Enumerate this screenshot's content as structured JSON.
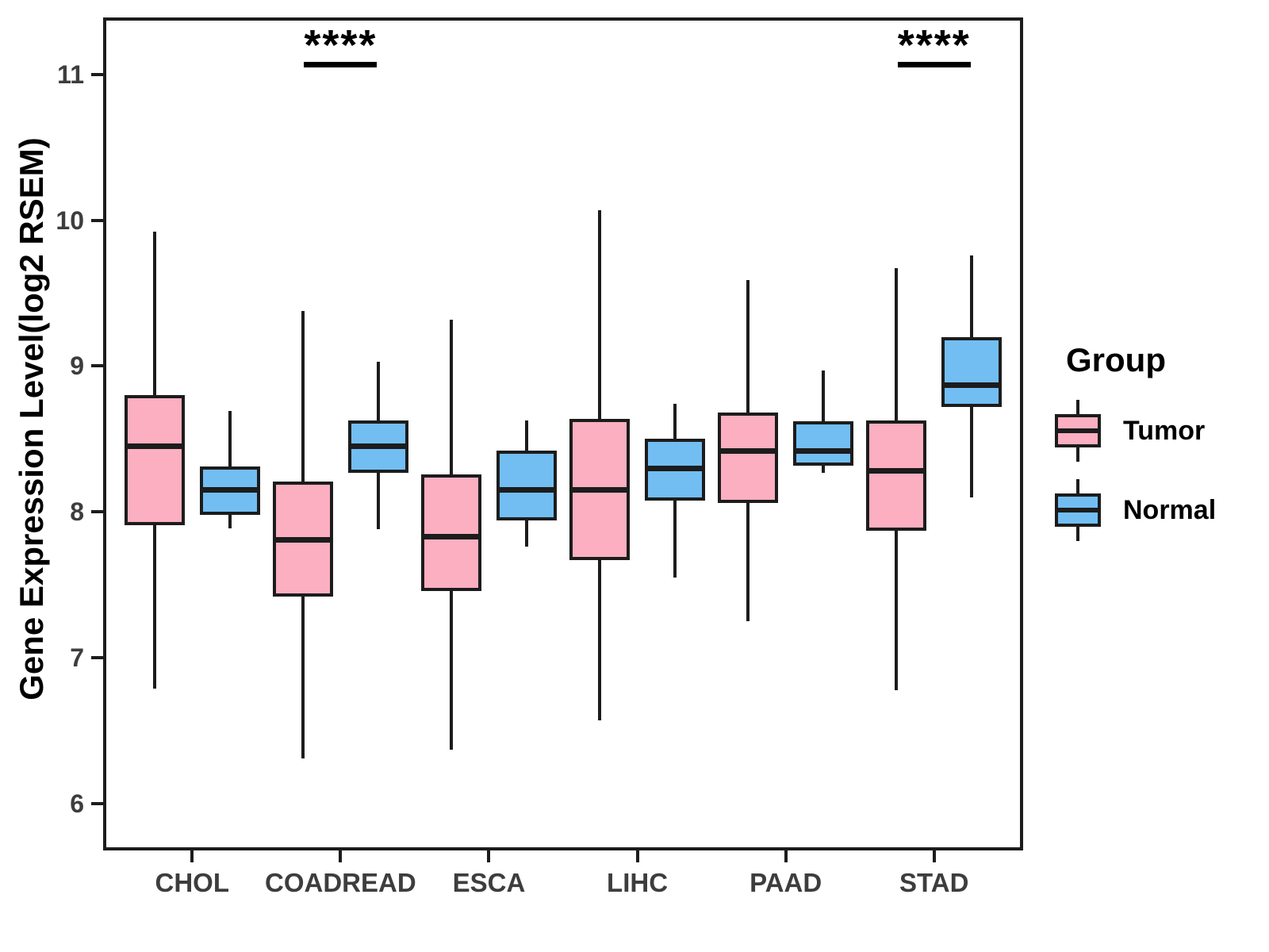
{
  "chart_data": {
    "type": "boxplot",
    "title": "",
    "xlabel": "",
    "ylabel": "Gene Expression Level(log2 RSEM)",
    "categories": [
      "CHOL",
      "COADREAD",
      "ESCA",
      "LIHC",
      "PAAD",
      "STAD"
    ],
    "y_ticks": [
      6,
      7,
      8,
      9,
      10,
      11
    ],
    "y_domain": [
      5.68,
      11.39
    ],
    "grid": "off",
    "legend_position": "right",
    "legend": {
      "title": "Group",
      "items": [
        {
          "label": "Tumor",
          "color": "#FBAFC1"
        },
        {
          "label": "Normal",
          "color": "#72BEF3"
        }
      ]
    },
    "series": [
      {
        "name": "Tumor",
        "color": "#FBAFC1",
        "boxes": [
          {
            "category": "CHOL",
            "min": 6.79,
            "q1": 7.91,
            "median": 8.45,
            "q3": 8.8,
            "max": 9.92
          },
          {
            "category": "COADREAD",
            "min": 6.31,
            "q1": 7.42,
            "median": 7.81,
            "q3": 8.21,
            "max": 9.38
          },
          {
            "category": "ESCA",
            "min": 6.37,
            "q1": 7.46,
            "median": 7.83,
            "q3": 8.26,
            "max": 9.32
          },
          {
            "category": "LIHC",
            "min": 6.57,
            "q1": 7.67,
            "median": 8.15,
            "q3": 8.64,
            "max": 10.07
          },
          {
            "category": "PAAD",
            "min": 7.25,
            "q1": 8.06,
            "median": 8.42,
            "q3": 8.68,
            "max": 9.59
          },
          {
            "category": "STAD",
            "min": 6.78,
            "q1": 7.87,
            "median": 8.28,
            "q3": 8.63,
            "max": 9.67
          }
        ]
      },
      {
        "name": "Normal",
        "color": "#72BEF3",
        "boxes": [
          {
            "category": "CHOL",
            "min": 7.89,
            "q1": 7.98,
            "median": 8.15,
            "q3": 8.31,
            "max": 8.69
          },
          {
            "category": "COADREAD",
            "min": 7.88,
            "q1": 8.27,
            "median": 8.45,
            "q3": 8.63,
            "max": 9.03
          },
          {
            "category": "ESCA",
            "min": 7.76,
            "q1": 7.94,
            "median": 8.15,
            "q3": 8.42,
            "max": 8.63
          },
          {
            "category": "LIHC",
            "min": 7.55,
            "q1": 8.08,
            "median": 8.3,
            "q3": 8.5,
            "max": 8.74
          },
          {
            "category": "PAAD",
            "min": 8.27,
            "q1": 8.32,
            "median": 8.42,
            "q3": 8.62,
            "max": 8.97
          },
          {
            "category": "STAD",
            "min": 8.1,
            "q1": 8.72,
            "median": 8.87,
            "q3": 9.2,
            "max": 9.76
          }
        ]
      }
    ],
    "annotations": [
      {
        "category": "COADREAD",
        "label": "****"
      },
      {
        "category": "STAD",
        "label": "****"
      }
    ],
    "colors": {
      "box_border": "#1C1C1C",
      "axis": "#1C1C1C",
      "tick_label": "#3d3d3d"
    }
  }
}
